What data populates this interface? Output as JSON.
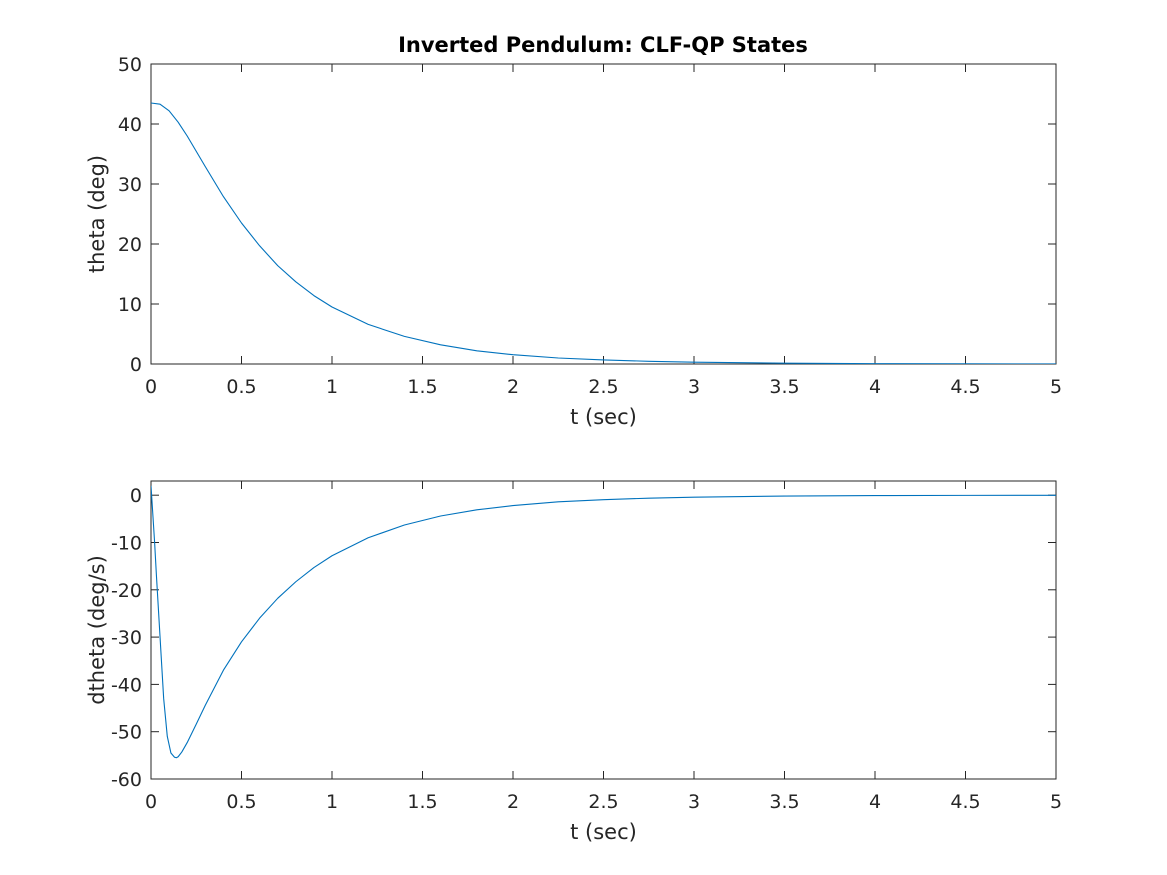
{
  "title": "Inverted Pendulum: CLF-QP States",
  "colors": {
    "line": "#0072BD",
    "axes": "#262626"
  },
  "chart_data": [
    {
      "type": "line",
      "title": "Inverted Pendulum: CLF-QP States",
      "xlabel": "t (sec)",
      "ylabel": "theta (deg)",
      "xlim": [
        0,
        5
      ],
      "ylim": [
        0,
        50
      ],
      "xticks": [
        0,
        0.5,
        1,
        1.5,
        2,
        2.5,
        3,
        3.5,
        4,
        4.5,
        5
      ],
      "xtick_labels": [
        "0",
        "0.5",
        "1",
        "1.5",
        "2",
        "2.5",
        "3",
        "3.5",
        "4",
        "4.5",
        "5"
      ],
      "yticks": [
        0,
        10,
        20,
        30,
        40,
        50
      ],
      "ytick_labels": [
        "0",
        "10",
        "20",
        "30",
        "40",
        "50"
      ],
      "grid": false,
      "series": [
        {
          "x": [
            0,
            0.05,
            0.1,
            0.15,
            0.2,
            0.3,
            0.4,
            0.5,
            0.6,
            0.7,
            0.8,
            0.9,
            1.0,
            1.2,
            1.4,
            1.6,
            1.8,
            2.0,
            2.25,
            2.5,
            2.75,
            3.0,
            3.5,
            4.0,
            4.5,
            5.0
          ],
          "y": [
            43.5,
            43.3,
            42.2,
            40.3,
            38.0,
            32.9,
            27.9,
            23.5,
            19.7,
            16.4,
            13.7,
            11.4,
            9.5,
            6.6,
            4.6,
            3.2,
            2.2,
            1.55,
            1.0,
            0.68,
            0.45,
            0.3,
            0.14,
            0.06,
            0.03,
            0.01
          ]
        }
      ]
    },
    {
      "type": "line",
      "xlabel": "t (sec)",
      "ylabel": "dtheta (deg/s)",
      "xlim": [
        0,
        5
      ],
      "ylim": [
        -60,
        3
      ],
      "xticks": [
        0,
        0.5,
        1,
        1.5,
        2,
        2.5,
        3,
        3.5,
        4,
        4.5,
        5
      ],
      "xtick_labels": [
        "0",
        "0.5",
        "1",
        "1.5",
        "2",
        "2.5",
        "3",
        "3.5",
        "4",
        "4.5",
        "5"
      ],
      "yticks": [
        -60,
        -50,
        -40,
        -30,
        -20,
        -10,
        0
      ],
      "ytick_labels": [
        "-60",
        "-50",
        "-40",
        "-30",
        "-20",
        "-10",
        "0"
      ],
      "grid": false,
      "series": [
        {
          "x": [
            0,
            0.01,
            0.02,
            0.03,
            0.05,
            0.07,
            0.09,
            0.11,
            0.13,
            0.14,
            0.15,
            0.17,
            0.2,
            0.25,
            0.3,
            0.4,
            0.5,
            0.6,
            0.7,
            0.8,
            0.9,
            1.0,
            1.2,
            1.4,
            1.6,
            1.8,
            2.0,
            2.25,
            2.5,
            2.75,
            3.0,
            3.5,
            4.0,
            4.5,
            5.0
          ],
          "y": [
            2,
            -4,
            -10,
            -17,
            -30,
            -43,
            -51,
            -54.5,
            -55.4,
            -55.5,
            -55.3,
            -54.3,
            -52.3,
            -48.4,
            -44.4,
            -37.0,
            -31.0,
            -26.0,
            -21.8,
            -18.3,
            -15.3,
            -12.8,
            -9.0,
            -6.3,
            -4.4,
            -3.1,
            -2.2,
            -1.4,
            -0.95,
            -0.63,
            -0.42,
            -0.19,
            -0.08,
            -0.04,
            -0.02
          ]
        }
      ]
    }
  ]
}
